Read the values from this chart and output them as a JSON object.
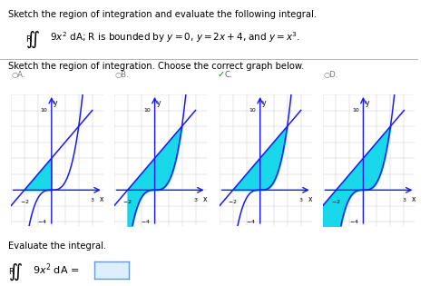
{
  "title_line1": "Sketch the region of integration and evaluate the following integral.",
  "section2_text": "Sketch the region of integration. Choose the correct graph below.",
  "shade_color": "#00d4e8",
  "line_color": "#1a1aee",
  "bg_color": "#ffffff",
  "text_color": "#000000",
  "grid_color": "#cccccc",
  "graph_xlim": [
    -3,
    3.8
  ],
  "graph_ylim": [
    -4.5,
    12
  ],
  "option_labels": [
    "A.",
    "B.",
    "C.",
    "D."
  ],
  "shade_regions": [
    "A",
    "B",
    "C",
    "D"
  ]
}
